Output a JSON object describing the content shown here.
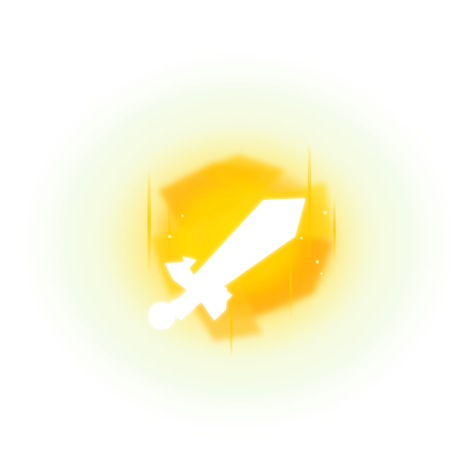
{
  "icon": {
    "semantic": "sword-icon",
    "effect": "golden-glow-burst"
  },
  "colors": {
    "background": "#ffffff",
    "outer_glow": "#eaf8c8",
    "mid_glow": "#ffe56a",
    "core_glow": "#ffb81a",
    "hot_center": "#ffd200",
    "blade": "#ffffff",
    "light_streak": "#ffcc00"
  }
}
